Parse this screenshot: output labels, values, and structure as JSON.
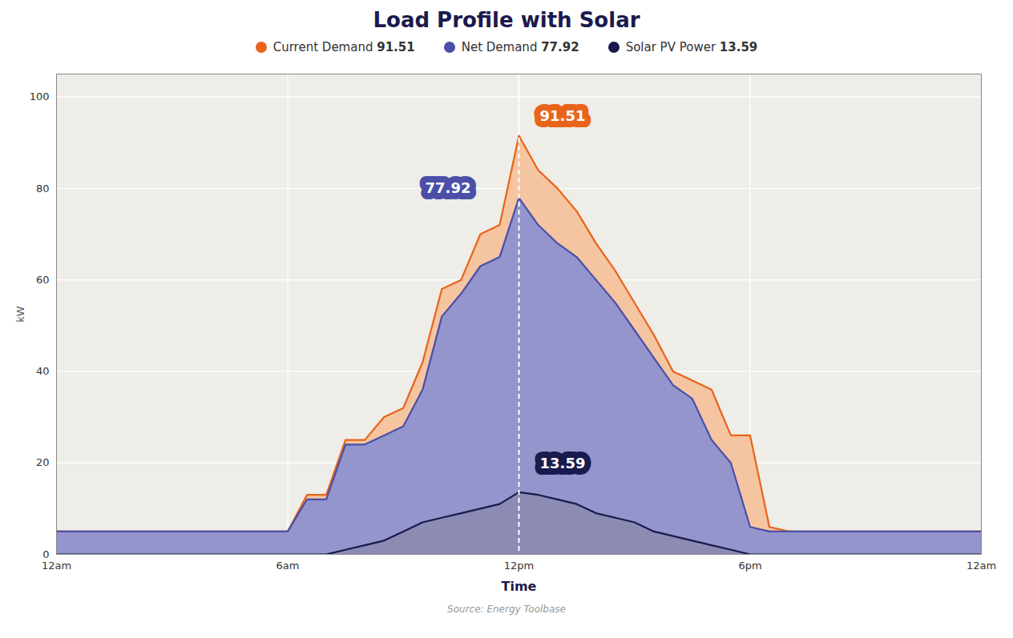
{
  "chart_data": {
    "type": "area",
    "title": "Load Profile with Solar",
    "title_color": "#1a1a4e",
    "xlabel": "Time",
    "xlabel_color": "#1a1a4e",
    "ylabel": "kW",
    "ylabel_color": "#555555",
    "source": "Source: Energy Toolbase",
    "source_color": "#999999",
    "background": "#eeede8",
    "grid": true,
    "grid_color": "#ffffff",
    "legend": "top",
    "xlim": [
      0,
      24
    ],
    "xticks": [
      {
        "value": 0,
        "label": "12am"
      },
      {
        "value": 6,
        "label": "6am"
      },
      {
        "value": 12,
        "label": "12pm"
      },
      {
        "value": 18,
        "label": "6pm"
      },
      {
        "value": 24,
        "label": "12am"
      }
    ],
    "ylim": [
      0,
      105
    ],
    "yticks": [
      0,
      20,
      40,
      60,
      80,
      100
    ],
    "x": [
      0,
      1,
      2,
      3,
      4,
      5,
      6,
      6.5,
      7,
      7.5,
      8,
      8.5,
      9,
      9.5,
      10,
      10.5,
      11,
      11.5,
      12,
      12.5,
      13,
      13.5,
      14,
      14.5,
      15,
      15.5,
      16,
      16.5,
      17,
      17.5,
      18,
      18.5,
      19,
      20,
      21,
      22,
      23,
      24
    ],
    "series": [
      {
        "name": "Current Demand",
        "peak": 91.51,
        "color": "#e8641a",
        "fill": "#f5c4a0",
        "values": [
          5,
          5,
          5,
          5,
          5,
          5,
          5,
          13,
          13,
          25,
          25,
          30,
          32,
          42,
          58,
          60,
          70,
          72,
          91.51,
          84,
          80,
          75,
          68,
          62,
          55,
          48,
          40,
          38,
          36,
          26,
          26,
          6,
          5,
          5,
          5,
          5,
          5,
          5
        ]
      },
      {
        "name": "Net Demand",
        "peak": 77.92,
        "color": "#4b4fa8",
        "fill": "#9395cc",
        "values": [
          5,
          5,
          5,
          5,
          5,
          5,
          5,
          12,
          12,
          24,
          24,
          26,
          28,
          36,
          52,
          57,
          63,
          65,
          77.92,
          72,
          68,
          65,
          60,
          55,
          49,
          43,
          37,
          34,
          25,
          20,
          6,
          5,
          5,
          5,
          5,
          5,
          5,
          5
        ]
      },
      {
        "name": "Solar PV Power",
        "peak": 13.59,
        "color": "#1a1a4e",
        "fill": "#8888aa",
        "values": [
          0,
          0,
          0,
          0,
          0,
          0,
          0,
          0,
          0,
          1,
          2,
          3,
          5,
          7,
          8,
          9,
          10,
          11,
          13.59,
          13,
          12,
          11,
          9,
          8,
          7,
          5,
          4,
          3,
          2,
          1,
          0,
          0,
          0,
          0,
          0,
          0,
          0,
          0
        ]
      }
    ],
    "vline": {
      "x": 12,
      "color": "#ffffff",
      "line_style": "dashed"
    },
    "annotations": [
      {
        "x": 12,
        "y": 91.51,
        "text": "91.51",
        "color": "#e8641a"
      },
      {
        "x": 12,
        "y": 77.92,
        "text": "77.92",
        "color": "#4b4fa8"
      },
      {
        "x": 12,
        "y": 13.59,
        "text": "13.59",
        "color": "#1a1a4e"
      }
    ]
  }
}
